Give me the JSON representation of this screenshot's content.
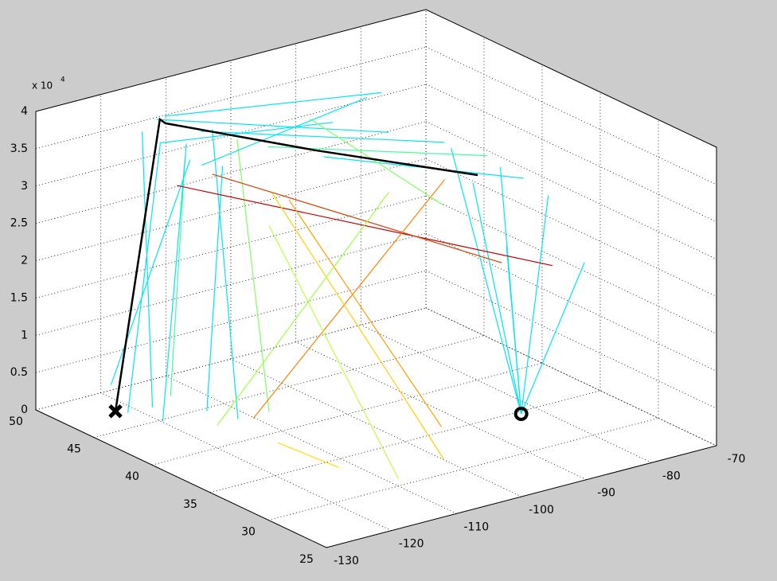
{
  "chart_data": {
    "type": "line3d",
    "xlim": [
      -130,
      -70
    ],
    "ylim": [
      25,
      50
    ],
    "zlim": [
      0,
      40000
    ],
    "xticks": [
      -130,
      -120,
      -110,
      -100,
      -90,
      -80,
      -70
    ],
    "yticks": [
      25,
      30,
      35,
      40,
      45,
      50
    ],
    "zticks": [
      0,
      {
        "value": 5000,
        "label": "0.5"
      },
      {
        "value": 10000,
        "label": "1"
      },
      {
        "value": 15000,
        "label": "1.5"
      },
      {
        "value": 20000,
        "label": "2"
      },
      {
        "value": 25000,
        "label": "2.5"
      },
      {
        "value": 30000,
        "label": "3"
      },
      {
        "value": 35000,
        "label": "3.5"
      },
      {
        "value": 40000,
        "label": "4"
      }
    ],
    "z_multiplier": "x 10",
    "z_exponent": "4",
    "grid": true,
    "series": [
      {
        "color": "#00e5ee",
        "x": [
          -123,
          -118
        ],
        "y": [
          46,
          46
        ],
        "z": [
          1000,
          36000
        ]
      },
      {
        "color": "#00e5ee",
        "x": [
          -122,
          -117
        ],
        "y": [
          48,
          44
        ],
        "z": [
          3000,
          35000
        ]
      },
      {
        "color": "#00e5ee",
        "x": [
          -121,
          -119
        ],
        "y": [
          45,
          47
        ],
        "z": [
          2000,
          37000
        ]
      },
      {
        "color": "#40ffa0",
        "x": [
          -120,
          -116
        ],
        "y": [
          44,
          45
        ],
        "z": [
          4000,
          34000
        ]
      },
      {
        "color": "#00e5ee",
        "x": [
          -123,
          -114
        ],
        "y": [
          43,
          46
        ],
        "z": [
          2000,
          35000
        ]
      },
      {
        "color": "#00e5ee",
        "x": [
          -118,
          -112
        ],
        "y": [
          42,
          44
        ],
        "z": [
          3000,
          33000
        ]
      },
      {
        "color": "#00e5ee",
        "x": [
          -115,
          -110
        ],
        "y": [
          41,
          46
        ],
        "z": [
          2000,
          36000
        ]
      },
      {
        "color": "#80ff60",
        "x": [
          -112,
          -108
        ],
        "y": [
          40,
          45
        ],
        "z": [
          3000,
          35000
        ]
      },
      {
        "color": "#00e5ee",
        "x": [
          -118,
          -95
        ],
        "y": [
          46,
          44
        ],
        "z": [
          36000,
          35000
        ]
      },
      {
        "color": "#00e5ee",
        "x": [
          -115,
          -90
        ],
        "y": [
          48,
          42
        ],
        "z": [
          37000,
          34000
        ]
      },
      {
        "color": "#00e5ee",
        "x": [
          -110,
          -85
        ],
        "y": [
          47,
          40
        ],
        "z": [
          35000,
          33000
        ]
      },
      {
        "color": "#40ffa0",
        "x": [
          -105,
          -82
        ],
        "y": [
          44,
          38
        ],
        "z": [
          34000,
          32000
        ]
      },
      {
        "color": "#00e5ee",
        "x": [
          -117,
          -88
        ],
        "y": [
          43,
          45
        ],
        "z": [
          35000,
          36000
        ]
      },
      {
        "color": "#00e5ee",
        "x": [
          -112,
          -84
        ],
        "y": [
          49,
          46
        ],
        "z": [
          36000,
          35000
        ]
      },
      {
        "color": "#00e5ee",
        "x": [
          -100,
          -80
        ],
        "y": [
          42,
          36
        ],
        "z": [
          33000,
          30000
        ]
      },
      {
        "color": "#00e5ee",
        "x": [
          -82.7,
          -80
        ],
        "y": [
          34.7,
          38
        ],
        "z": [
          0,
          30000
        ]
      },
      {
        "color": "#00e5ee",
        "x": [
          -82.7,
          -84
        ],
        "y": [
          34.7,
          40
        ],
        "z": [
          0,
          32000
        ]
      },
      {
        "color": "#00e5ee",
        "x": [
          -82.7,
          -78
        ],
        "y": [
          34.7,
          35
        ],
        "z": [
          0,
          28000
        ]
      },
      {
        "color": "#00e5ee",
        "x": [
          -82.7,
          -86
        ],
        "y": [
          34.7,
          37
        ],
        "z": [
          0,
          30000
        ]
      },
      {
        "color": "#00e5ee",
        "x": [
          -82.7,
          -76
        ],
        "y": [
          34.7,
          33
        ],
        "z": [
          0,
          20000
        ]
      },
      {
        "color": "#00e5ee",
        "x": [
          -82.7,
          -88
        ],
        "y": [
          34.7,
          33
        ],
        "z": [
          0,
          25000
        ]
      },
      {
        "color": "#c00000",
        "x": [
          -119,
          -72
        ],
        "y": [
          44,
          38
        ],
        "z": [
          32000,
          15000
        ]
      },
      {
        "color": "#d04000",
        "x": [
          -110,
          -78
        ],
        "y": [
          46,
          39
        ],
        "z": [
          30000,
          16000
        ]
      },
      {
        "color": "#ff8000",
        "x": [
          -118,
          -85
        ],
        "y": [
          38,
          40
        ],
        "z": [
          5000,
          28000
        ]
      },
      {
        "color": "#ffd000",
        "x": [
          -108,
          -103
        ],
        "y": [
          42,
          30
        ],
        "z": [
          30000,
          2000
        ]
      },
      {
        "color": "#c0ff40",
        "x": [
          -112,
          -110
        ],
        "y": [
          40,
          30
        ],
        "z": [
          28000,
          1000
        ]
      },
      {
        "color": "#ffa000",
        "x": [
          -100,
          -98
        ],
        "y": [
          45,
          33
        ],
        "z": [
          25000,
          3000
        ]
      },
      {
        "color": "#a0ff40",
        "x": [
          -120,
          -90
        ],
        "y": [
          40,
          42
        ],
        "z": [
          3000,
          26000
        ]
      },
      {
        "color": "#80ff60",
        "x": [
          -95,
          -78
        ],
        "y": [
          46,
          44
        ],
        "z": [
          34000,
          20000
        ]
      },
      {
        "color": "#ffe000",
        "x": [
          -116,
          -112
        ],
        "y": [
          37,
          34
        ],
        "z": [
          2000,
          0
        ]
      },
      {
        "color": "#000000",
        "line_width": 2.5,
        "x": [
          -122.4,
          -117,
          -116.5,
          -105,
          -91.7
        ],
        "y": [
          47.4,
          46.6,
          46.4,
          40,
          33.4
        ],
        "z": [
          0,
          38500,
          38000,
          36500,
          35000
        ]
      }
    ],
    "markers": [
      {
        "symbol": "x",
        "color": "#000000",
        "x": -122.4,
        "y": 47.4,
        "z": 0
      },
      {
        "symbol": "o",
        "color": "#000000",
        "x": -82.7,
        "y": 34.7,
        "z": 0
      }
    ]
  }
}
